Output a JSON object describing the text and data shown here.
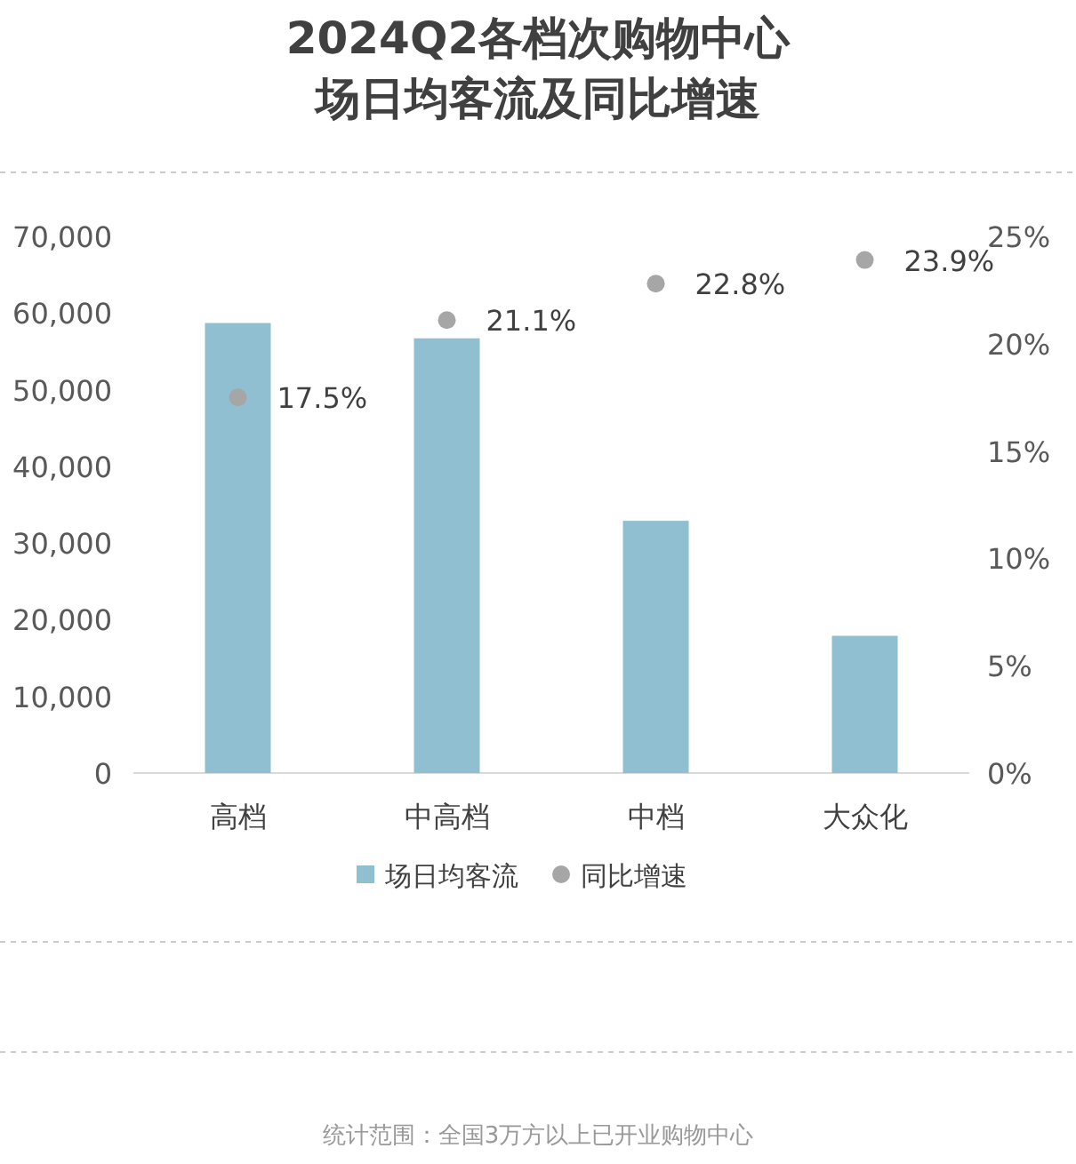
{
  "chart_data": {
    "type": "bar",
    "title": "2024Q2各档次购物中心场日均客流及同比增速",
    "categories": [
      "高档",
      "中高档",
      "中档",
      "大众化"
    ],
    "series": [
      {
        "name": "场日均客流",
        "type": "bar",
        "color": "#8fbfd0",
        "values": [
          58700,
          56700,
          32900,
          17900
        ]
      },
      {
        "name": "同比增速",
        "type": "scatter",
        "axis": "y2",
        "color": "#a6a6a6",
        "marker": "circle",
        "values": [
          17.5,
          21.1,
          22.8,
          23.9
        ],
        "value_labels": [
          "17.5%",
          "21.1%",
          "22.8%",
          "23.9%"
        ]
      }
    ],
    "ylim": [
      0,
      70000
    ],
    "yticks": [
      0,
      {
        "value": 10000,
        "label": "10,000"
      },
      {
        "value": 20000,
        "label": "20,000"
      },
      {
        "value": 30000,
        "label": "30,000"
      },
      {
        "value": 40000,
        "label": "40,000"
      },
      {
        "value": 50000,
        "label": "50,000"
      },
      {
        "value": 60000,
        "label": "60,000"
      },
      {
        "value": 70000,
        "label": "70,000"
      }
    ],
    "y2lim": [
      0,
      25
    ],
    "y2ticks": [
      {
        "value": 0,
        "label": "0%"
      },
      {
        "value": 5,
        "label": "5%"
      },
      {
        "value": 10,
        "label": "10%"
      },
      {
        "value": 15,
        "label": "15%"
      },
      {
        "value": 20,
        "label": "20%"
      },
      {
        "value": 25,
        "label": "25%"
      }
    ],
    "legend": "bottom",
    "grid": false,
    "annotations": [
      "统计范围：全国3万方以上已开业购物中心"
    ]
  }
}
